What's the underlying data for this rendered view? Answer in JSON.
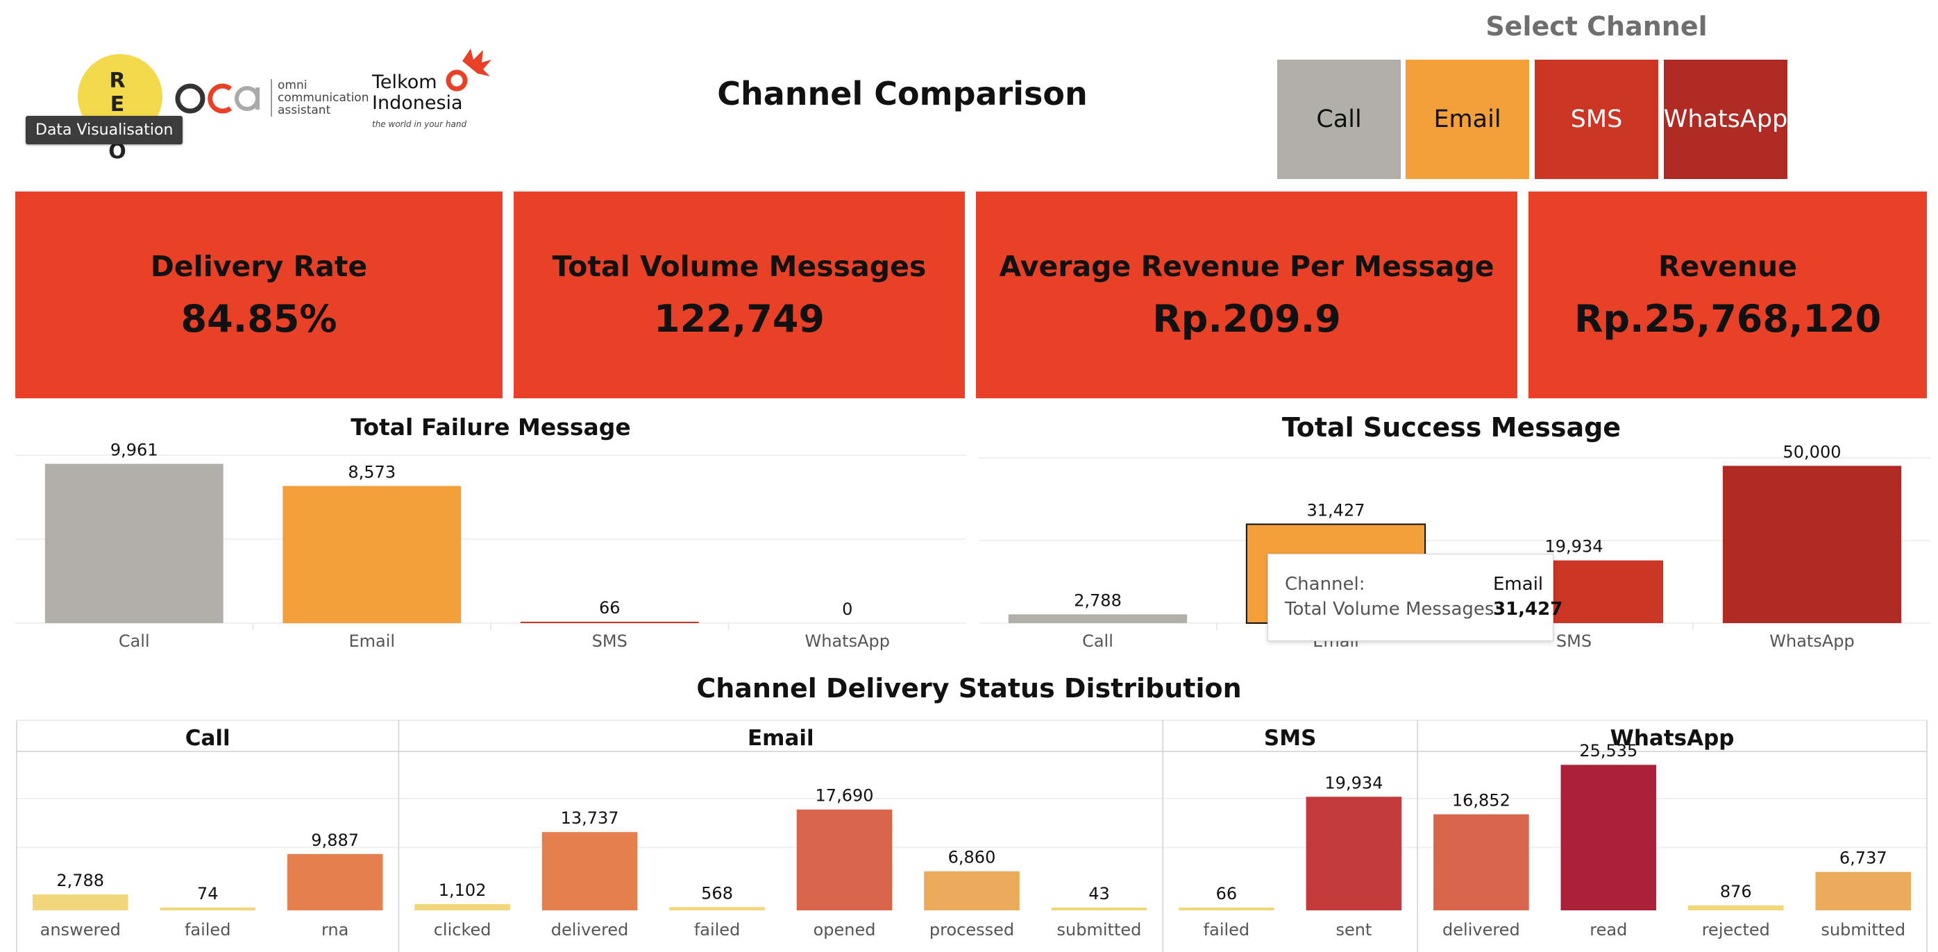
{
  "header": {
    "revo_logo_letters": "R E V O",
    "tooltip": "Data Visualisation",
    "oca_logo": "oca",
    "oca_tagline": [
      "omni",
      "communication",
      "assistant"
    ],
    "telkom_name": [
      "Telkom",
      "Indonesia"
    ],
    "telkom_tagline": "the world in your hand",
    "title": "Channel Comparison"
  },
  "channel_filter": {
    "title": "Select Channel",
    "options": [
      {
        "label": "Call",
        "color": "#b0afa8"
      },
      {
        "label": "Email",
        "color": "#f39f3a"
      },
      {
        "label": "SMS",
        "color": "#cc3424"
      },
      {
        "label": "WhatsApp",
        "color": "#b02a24"
      }
    ]
  },
  "kpis": [
    {
      "label": "Delivery Rate",
      "value": "84.85%"
    },
    {
      "label": "Total Volume Messages",
      "value": "122,749"
    },
    {
      "label": "Average Revenue Per Message",
      "value": "Rp.209.9"
    },
    {
      "label": "Revenue",
      "value": "Rp.25,768,120"
    }
  ],
  "tooltip_success": {
    "channel_label": "Channel:",
    "channel_value": "Email",
    "volume_label": "Total Volume Messages:",
    "volume_value": "31,427"
  },
  "colors": {
    "kpi_bg": "#e84127",
    "call": "#b0afa8",
    "email": "#f39f3a",
    "sms": "#cc3424",
    "whatsapp": "#b02a24",
    "grid": "#ececec"
  },
  "chart_data": [
    {
      "type": "bar",
      "title": "Total Failure Message",
      "categories": [
        "Call",
        "Email",
        "SMS",
        "WhatsApp"
      ],
      "values": [
        9961,
        8573,
        66,
        0
      ],
      "value_labels": [
        "9,961",
        "8,573",
        "66",
        "0"
      ],
      "colors": [
        "#b0afa8",
        "#f39f3a",
        "#cc3424",
        "#b02a24"
      ],
      "ylim": [
        0,
        10500
      ],
      "grid": true
    },
    {
      "type": "bar",
      "title": "Total Success Message",
      "categories": [
        "Call",
        "Email",
        "SMS",
        "WhatsApp"
      ],
      "values": [
        2788,
        31427,
        19934,
        50000
      ],
      "value_labels": [
        "2,788",
        "31,427",
        "19,934",
        "50,000"
      ],
      "colors": [
        "#b0afa8",
        "#f39f3a",
        "#cc3424",
        "#b02a24"
      ],
      "ylim": [
        0,
        52500
      ],
      "grid": true,
      "highlighted": "Email"
    },
    {
      "type": "bar",
      "title": "Channel Delivery Status Distribution",
      "ylim": [
        0,
        28000
      ],
      "grid": true,
      "panels": [
        {
          "name": "Call",
          "categories": [
            "answered",
            "failed",
            "rna"
          ],
          "values": [
            2788,
            74,
            9887
          ],
          "value_labels": [
            "2,788",
            "74",
            "9,887"
          ]
        },
        {
          "name": "Email",
          "categories": [
            "clicked",
            "delivered",
            "failed",
            "opened",
            "processed",
            "submitted"
          ],
          "values": [
            1102,
            13737,
            568,
            17690,
            6860,
            43
          ],
          "value_labels": [
            "1,102",
            "13,737",
            "568",
            "17,690",
            "6,860",
            "43"
          ]
        },
        {
          "name": "SMS",
          "categories": [
            "failed",
            "sent"
          ],
          "values": [
            66,
            19934
          ],
          "value_labels": [
            "66",
            "19,934"
          ]
        },
        {
          "name": "WhatsApp",
          "categories": [
            "delivered",
            "read",
            "rejected",
            "submitted"
          ],
          "values": [
            16852,
            25535,
            876,
            6737
          ],
          "value_labels": [
            "16,852",
            "25,535",
            "876",
            "6,737"
          ]
        }
      ],
      "color_scale": [
        "#f2d77a",
        "#ecab5a",
        "#e5804d",
        "#d8644a",
        "#c23a3c",
        "#aa2238"
      ]
    }
  ]
}
